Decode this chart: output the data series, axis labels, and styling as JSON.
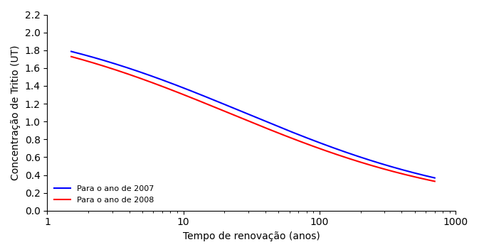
{
  "title": "",
  "xlabel": "Tempo de renovação (anos)",
  "ylabel": "Concentração de Tritio (UT)",
  "xlim": [
    1,
    1000
  ],
  "ylim": [
    0,
    2.2
  ],
  "yticks": [
    0,
    0.2,
    0.4,
    0.6,
    0.8,
    1.0,
    1.2,
    1.4,
    1.6,
    1.8,
    2.0,
    2.2
  ],
  "color_2007": "#0000ff",
  "color_2008": "#ff0000",
  "label_2007": "Para o ano de 2007",
  "label_2008": "Para o ano de 2008",
  "legend_loc": "lower left",
  "background_color": "#ffffff",
  "linewidth": 1.5,
  "curve_2007": {
    "A": 2.2,
    "x0": 28.0,
    "k": 1.15
  },
  "curve_2008": {
    "A": 2.18,
    "x0": 22.0,
    "k": 1.15
  }
}
